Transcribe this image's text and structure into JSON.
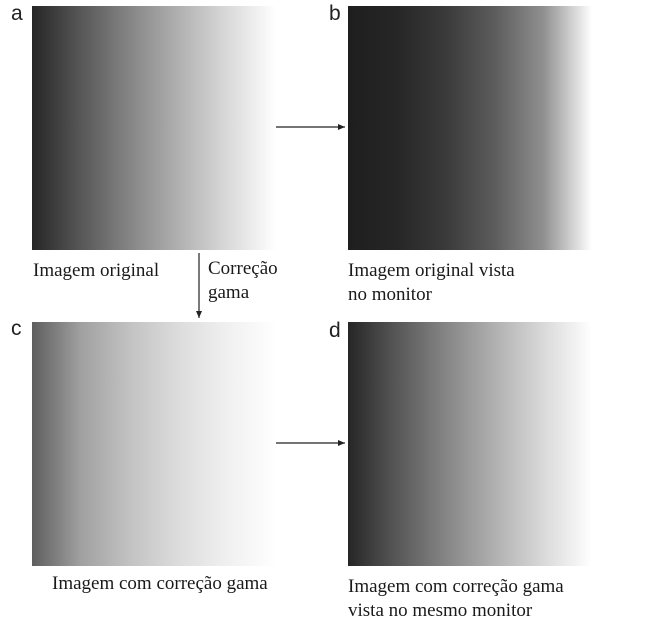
{
  "panels": {
    "a": {
      "letter": "a",
      "caption": "Imagem original"
    },
    "b": {
      "letter": "b",
      "caption_line1": "Imagem original vista",
      "caption_line2": "no monitor"
    },
    "c": {
      "letter": "c",
      "caption": "Imagem com correção gama"
    },
    "d": {
      "letter": "d",
      "caption_line1": "Imagem com correção gama",
      "caption_line2": "vista no mesmo monitor"
    }
  },
  "arrow_label": {
    "line1": "Correção",
    "line2": "gama"
  },
  "gradients": {
    "a": [
      "#262626",
      "#ffffff"
    ],
    "b": [
      "#1e1e1e",
      "#ffffff"
    ],
    "c": [
      "#5e5e5e",
      "#ffffff"
    ],
    "d": [
      "#262626",
      "#ffffff"
    ]
  },
  "colors": {
    "text": "#1a1a1a",
    "arrow": "#222222",
    "background": "#ffffff"
  }
}
